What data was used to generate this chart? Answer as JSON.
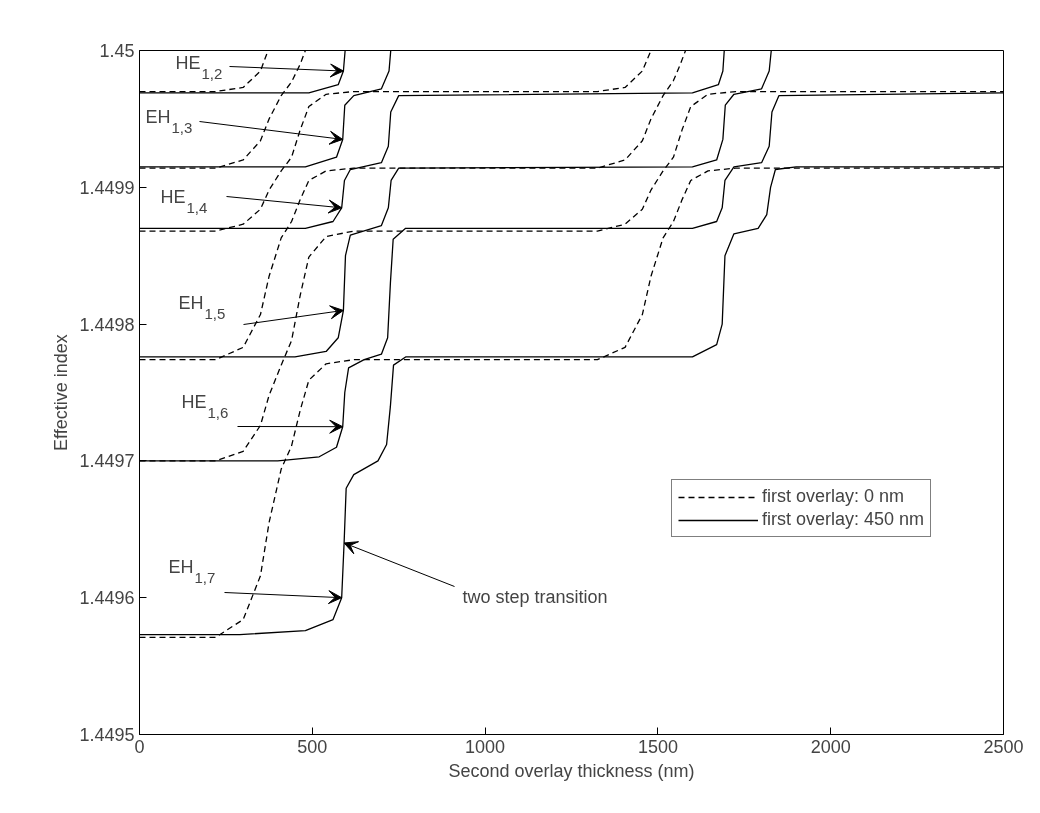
{
  "chart_data": {
    "type": "line",
    "xlabel": "Second overlay thickness (nm)",
    "ylabel": "Effective index",
    "xlim": [
      0,
      2500
    ],
    "xticks": [
      0,
      500,
      1000,
      1500,
      2000,
      2500
    ],
    "ylim": [
      1.4495,
      1.45
    ],
    "yticks": [
      1.4495,
      1.4496,
      1.4497,
      1.4498,
      1.4499,
      1.45
    ],
    "legend": "right",
    "series": [
      {
        "name": "first overlay: 0 nm",
        "color": "#000000",
        "line_style": "dashed",
        "x": [
          0,
          220,
          300,
          350,
          372,
          null,
          0,
          220,
          300,
          350,
          375,
          410,
          440,
          465,
          480,
          null,
          0,
          220,
          300,
          350,
          375,
          410,
          440,
          465,
          490,
          540,
          620,
          1325,
          1405,
          1455,
          1480,
          null,
          0,
          220,
          300,
          350,
          375,
          410,
          440,
          465,
          490,
          540,
          620,
          1325,
          1405,
          1455,
          1480,
          1515,
          1545,
          1565,
          1580,
          null,
          0,
          220,
          300,
          350,
          375,
          410,
          440,
          465,
          490,
          540,
          620,
          1325,
          1405,
          1455,
          1480,
          1515,
          1545,
          1570,
          1595,
          1645,
          1725,
          2500,
          null,
          0,
          220,
          300,
          350,
          375,
          410,
          440,
          465,
          490,
          540,
          620,
          1325,
          1405,
          1455,
          1480,
          1515,
          1545,
          1570,
          1595,
          1645,
          1725,
          2500
        ],
        "values": [
          1.44997,
          1.44997,
          1.449973,
          1.449985,
          1.45,
          null,
          1.449914,
          1.449914,
          1.44992,
          1.449934,
          1.44995,
          1.449967,
          1.449977,
          1.44999,
          1.45,
          null,
          1.449868,
          1.449868,
          1.449873,
          1.449884,
          1.449898,
          1.449912,
          1.449922,
          1.449942,
          1.449959,
          1.449968,
          1.44997,
          1.44997,
          1.449973,
          1.449985,
          1.45,
          null,
          1.449774,
          1.449774,
          1.449783,
          1.449807,
          1.449835,
          1.449863,
          1.449875,
          1.449891,
          1.449905,
          1.449912,
          1.449914,
          1.449914,
          1.44992,
          1.449934,
          1.44995,
          1.449967,
          1.449978,
          1.44999,
          1.45,
          null,
          1.4497,
          1.4497,
          1.449707,
          1.449726,
          1.449748,
          1.44977,
          1.449788,
          1.449821,
          1.449849,
          1.449864,
          1.449868,
          1.449868,
          1.449873,
          1.449884,
          1.449898,
          1.449912,
          1.449922,
          1.449942,
          1.449959,
          1.449968,
          1.44997,
          1.44997,
          null,
          1.449571,
          1.449571,
          1.449584,
          1.449616,
          1.449655,
          1.449694,
          1.449711,
          1.449737,
          1.449759,
          1.449771,
          1.449774,
          1.449774,
          1.449783,
          1.449807,
          1.449835,
          1.449863,
          1.449875,
          1.449891,
          1.449905,
          1.449912,
          1.449914,
          1.449914
        ]
      },
      {
        "name": "first overlay: 450 nm",
        "color": "#000000",
        "line_style": "solid",
        "x": [
          0,
          490,
          575,
          590,
          595,
          null,
          0,
          480,
          570,
          588,
          594,
          620,
          700,
          722,
          727,
          null,
          0,
          480,
          560,
          585,
          593,
          610,
          700,
          720,
          727,
          750,
          1600,
          1675,
          1688,
          1692,
          null,
          0,
          450,
          540,
          575,
          590,
          596,
          610,
          700,
          720,
          728,
          750,
          1600,
          1670,
          1688,
          1695,
          1720,
          1800,
          1822,
          1828,
          null,
          0,
          400,
          520,
          570,
          588,
          594,
          605,
          650,
          700,
          718,
          726,
          734,
          770,
          1600,
          1670,
          1686,
          1694,
          1720,
          1800,
          1822,
          1830,
          1850,
          2500,
          null,
          0,
          290,
          480,
          560,
          585,
          592,
          598,
          620,
          690,
          715,
          726,
          735,
          770,
          1600,
          1670,
          1686,
          1694,
          1720,
          1790,
          1815,
          1826,
          1840,
          1900,
          2500
        ],
        "values": [
          1.449969,
          1.449969,
          1.449975,
          1.449985,
          1.45,
          null,
          1.449915,
          1.449915,
          1.449922,
          1.449935,
          1.44996,
          1.449967,
          1.449972,
          1.449985,
          1.45,
          null,
          1.44987,
          1.44987,
          1.449875,
          1.449885,
          1.449905,
          1.449913,
          1.449918,
          1.44993,
          1.449955,
          1.449967,
          1.449969,
          1.449975,
          1.449985,
          1.45,
          null,
          1.449776,
          1.449776,
          1.44978,
          1.44979,
          1.44981,
          1.44985,
          1.449865,
          1.449872,
          1.449885,
          1.449905,
          1.449914,
          1.449915,
          1.44992,
          1.449935,
          1.44996,
          1.449968,
          1.449972,
          1.449985,
          1.45,
          null,
          1.4497,
          1.4497,
          1.449703,
          1.44971,
          1.449725,
          1.44975,
          1.449768,
          1.449774,
          1.449778,
          1.44979,
          1.44983,
          1.449862,
          1.44987,
          1.44987,
          1.449875,
          1.449885,
          1.449905,
          1.449915,
          1.449918,
          1.44993,
          1.449955,
          1.449967,
          1.449969,
          null,
          1.449573,
          1.449573,
          1.449576,
          1.449584,
          1.4496,
          1.44964,
          1.44968,
          1.44969,
          1.4497,
          1.449712,
          1.44974,
          1.44977,
          1.449776,
          1.449776,
          1.449785,
          1.4498,
          1.44985,
          1.449866,
          1.44987,
          1.44988,
          1.4499,
          1.449913,
          1.449915,
          1.449915
        ]
      }
    ],
    "annotations": [
      {
        "text": "HE$_{1,2}$",
        "x": 590,
        "y": 1.449985
      },
      {
        "text": "EH$_{1,3}$",
        "x": 588,
        "y": 1.449935
      },
      {
        "text": "HE$_{1,4}$",
        "x": 585,
        "y": 1.449885
      },
      {
        "text": "EH$_{1,5}$",
        "x": 590,
        "y": 1.44981
      },
      {
        "text": "HE$_{1,6}$",
        "x": 588,
        "y": 1.449725
      },
      {
        "text": "EH$_{1,7}$",
        "x": 585,
        "y": 1.4496
      },
      {
        "text": "two step transition",
        "x": 592,
        "y": 1.44964
      }
    ]
  }
}
